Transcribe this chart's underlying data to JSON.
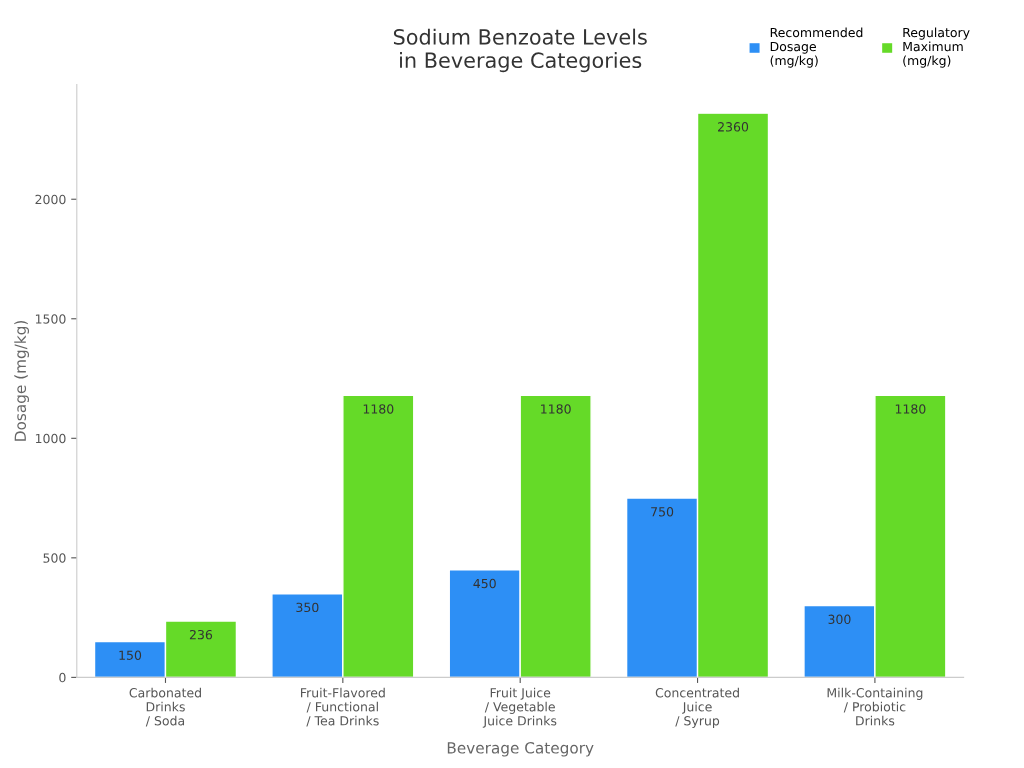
{
  "chart_data": {
    "type": "bar",
    "title": "Sodium Benzoate Levels\nin Beverage Categories",
    "xlabel": "Beverage Category",
    "ylabel": "Dosage (mg/kg)",
    "categories": [
      "Carbonated\nDrinks\n/ Soda",
      "Fruit-Flavored\n/ Functional\n/ Tea Drinks",
      "Fruit Juice\n/ Vegetable\nJuice Drinks",
      "Concentrated\nJuice\n/ Syrup",
      "Milk-Containing\n/ Probiotic\nDrinks"
    ],
    "series": [
      {
        "name": "Recommended\nDosage\n(mg/kg)",
        "color": "#2d8ff5",
        "values": [
          150,
          350,
          450,
          750,
          300
        ]
      },
      {
        "name": "Regulatory\nMaximum\n(mg/kg)",
        "color": "#65da28",
        "values": [
          236,
          1180,
          1180,
          2360,
          1180
        ]
      }
    ],
    "ylim": [
      0,
      2480
    ],
    "yticks": [
      0,
      500,
      1000,
      1500,
      2000
    ],
    "grid": false,
    "legend": "top right",
    "data_labels": true
  }
}
